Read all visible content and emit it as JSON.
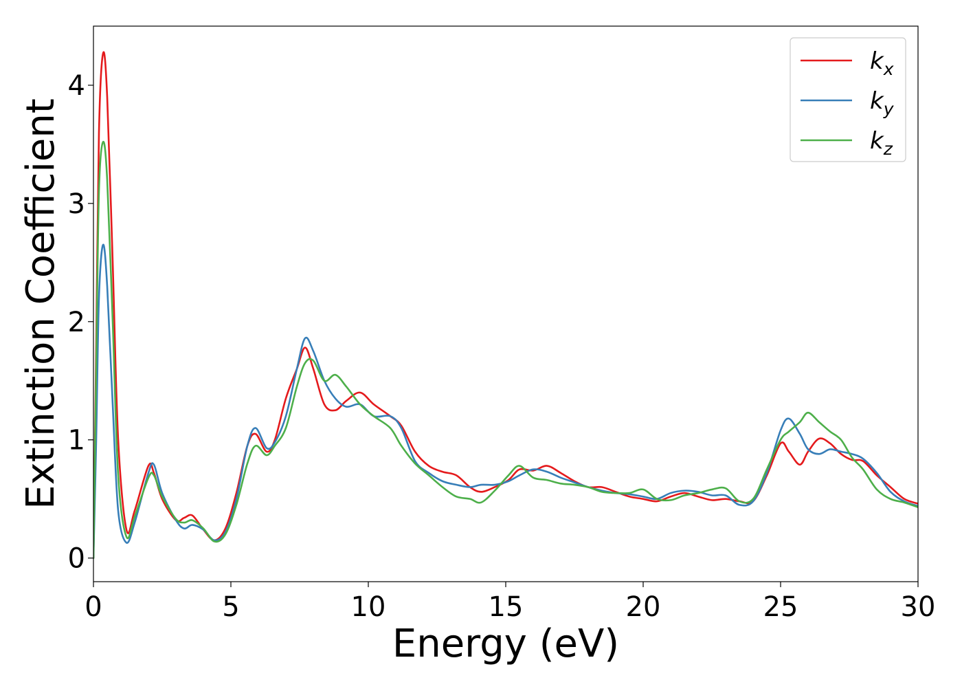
{
  "chart_data": {
    "type": "line",
    "xlabel": "Energy (eV)",
    "ylabel": "Extinction Coefficient",
    "xlim": [
      0,
      30
    ],
    "ylim": [
      -0.2,
      4.5
    ],
    "xticks": [
      0,
      5,
      10,
      15,
      20,
      25,
      30
    ],
    "yticks": [
      0,
      1,
      2,
      3,
      4
    ],
    "grid": false,
    "legend": "top-right",
    "x": [
      0,
      0.1,
      0.2,
      0.35,
      0.5,
      0.7,
      0.9,
      1.2,
      1.5,
      2.0,
      2.2,
      2.5,
      3.0,
      3.3,
      3.6,
      4.0,
      4.4,
      4.8,
      5.2,
      5.6,
      5.9,
      6.3,
      6.6,
      7.0,
      7.4,
      7.7,
      8.0,
      8.4,
      8.8,
      9.2,
      9.7,
      10.2,
      10.8,
      11.2,
      11.7,
      12.2,
      12.7,
      13.2,
      13.7,
      14.1,
      14.6,
      15.1,
      15.5,
      16.0,
      16.5,
      17.0,
      17.5,
      18.0,
      18.5,
      19.0,
      19.5,
      20.0,
      20.5,
      21.0,
      21.5,
      22.0,
      22.5,
      23.0,
      23.5,
      24.0,
      24.5,
      25.0,
      25.3,
      25.7,
      26.0,
      26.4,
      26.8,
      27.2,
      27.6,
      28.0,
      28.5,
      29.0,
      29.5,
      30.0
    ],
    "series": [
      {
        "name": "k_x",
        "color": "#e41a1c",
        "values": [
          0.0,
          1.8,
          3.6,
          4.27,
          3.9,
          2.5,
          1.0,
          0.24,
          0.4,
          0.78,
          0.72,
          0.5,
          0.32,
          0.34,
          0.36,
          0.24,
          0.15,
          0.25,
          0.55,
          0.95,
          1.05,
          0.9,
          1.0,
          1.35,
          1.6,
          1.78,
          1.6,
          1.3,
          1.25,
          1.33,
          1.4,
          1.3,
          1.2,
          1.12,
          0.9,
          0.78,
          0.73,
          0.7,
          0.6,
          0.56,
          0.6,
          0.66,
          0.75,
          0.74,
          0.78,
          0.72,
          0.65,
          0.6,
          0.6,
          0.56,
          0.52,
          0.5,
          0.48,
          0.52,
          0.55,
          0.52,
          0.49,
          0.5,
          0.48,
          0.48,
          0.7,
          0.97,
          0.9,
          0.79,
          0.9,
          1.01,
          0.97,
          0.88,
          0.83,
          0.82,
          0.7,
          0.6,
          0.5,
          0.46
        ]
      },
      {
        "name": "k_y",
        "color": "#377eb8",
        "values": [
          0.0,
          1.0,
          2.2,
          2.65,
          2.3,
          1.3,
          0.4,
          0.13,
          0.3,
          0.72,
          0.79,
          0.55,
          0.32,
          0.25,
          0.28,
          0.24,
          0.15,
          0.22,
          0.5,
          0.95,
          1.1,
          0.93,
          0.98,
          1.2,
          1.6,
          1.86,
          1.75,
          1.5,
          1.35,
          1.28,
          1.3,
          1.2,
          1.2,
          1.1,
          0.82,
          0.72,
          0.65,
          0.62,
          0.6,
          0.62,
          0.62,
          0.65,
          0.7,
          0.75,
          0.73,
          0.68,
          0.64,
          0.6,
          0.57,
          0.55,
          0.54,
          0.52,
          0.5,
          0.55,
          0.57,
          0.56,
          0.53,
          0.53,
          0.45,
          0.48,
          0.72,
          1.08,
          1.18,
          1.05,
          0.92,
          0.88,
          0.92,
          0.9,
          0.88,
          0.84,
          0.72,
          0.56,
          0.48,
          0.44
        ]
      },
      {
        "name": "k_z",
        "color": "#4daf4a",
        "values": [
          0.0,
          1.6,
          3.1,
          3.52,
          3.2,
          2.0,
          0.7,
          0.18,
          0.35,
          0.68,
          0.7,
          0.52,
          0.33,
          0.3,
          0.32,
          0.25,
          0.14,
          0.2,
          0.45,
          0.8,
          0.95,
          0.87,
          0.95,
          1.1,
          1.45,
          1.65,
          1.67,
          1.5,
          1.55,
          1.45,
          1.3,
          1.2,
          1.1,
          0.95,
          0.8,
          0.7,
          0.6,
          0.52,
          0.5,
          0.47,
          0.57,
          0.7,
          0.78,
          0.68,
          0.66,
          0.63,
          0.62,
          0.6,
          0.56,
          0.55,
          0.55,
          0.58,
          0.5,
          0.49,
          0.53,
          0.55,
          0.58,
          0.59,
          0.48,
          0.5,
          0.75,
          1.0,
          1.07,
          1.15,
          1.23,
          1.15,
          1.07,
          1.0,
          0.85,
          0.75,
          0.58,
          0.5,
          0.47,
          0.43
        ]
      }
    ]
  },
  "legend": {
    "entries": [
      {
        "base": "k",
        "sub": "x"
      },
      {
        "base": "k",
        "sub": "y"
      },
      {
        "base": "k",
        "sub": "z"
      }
    ]
  }
}
